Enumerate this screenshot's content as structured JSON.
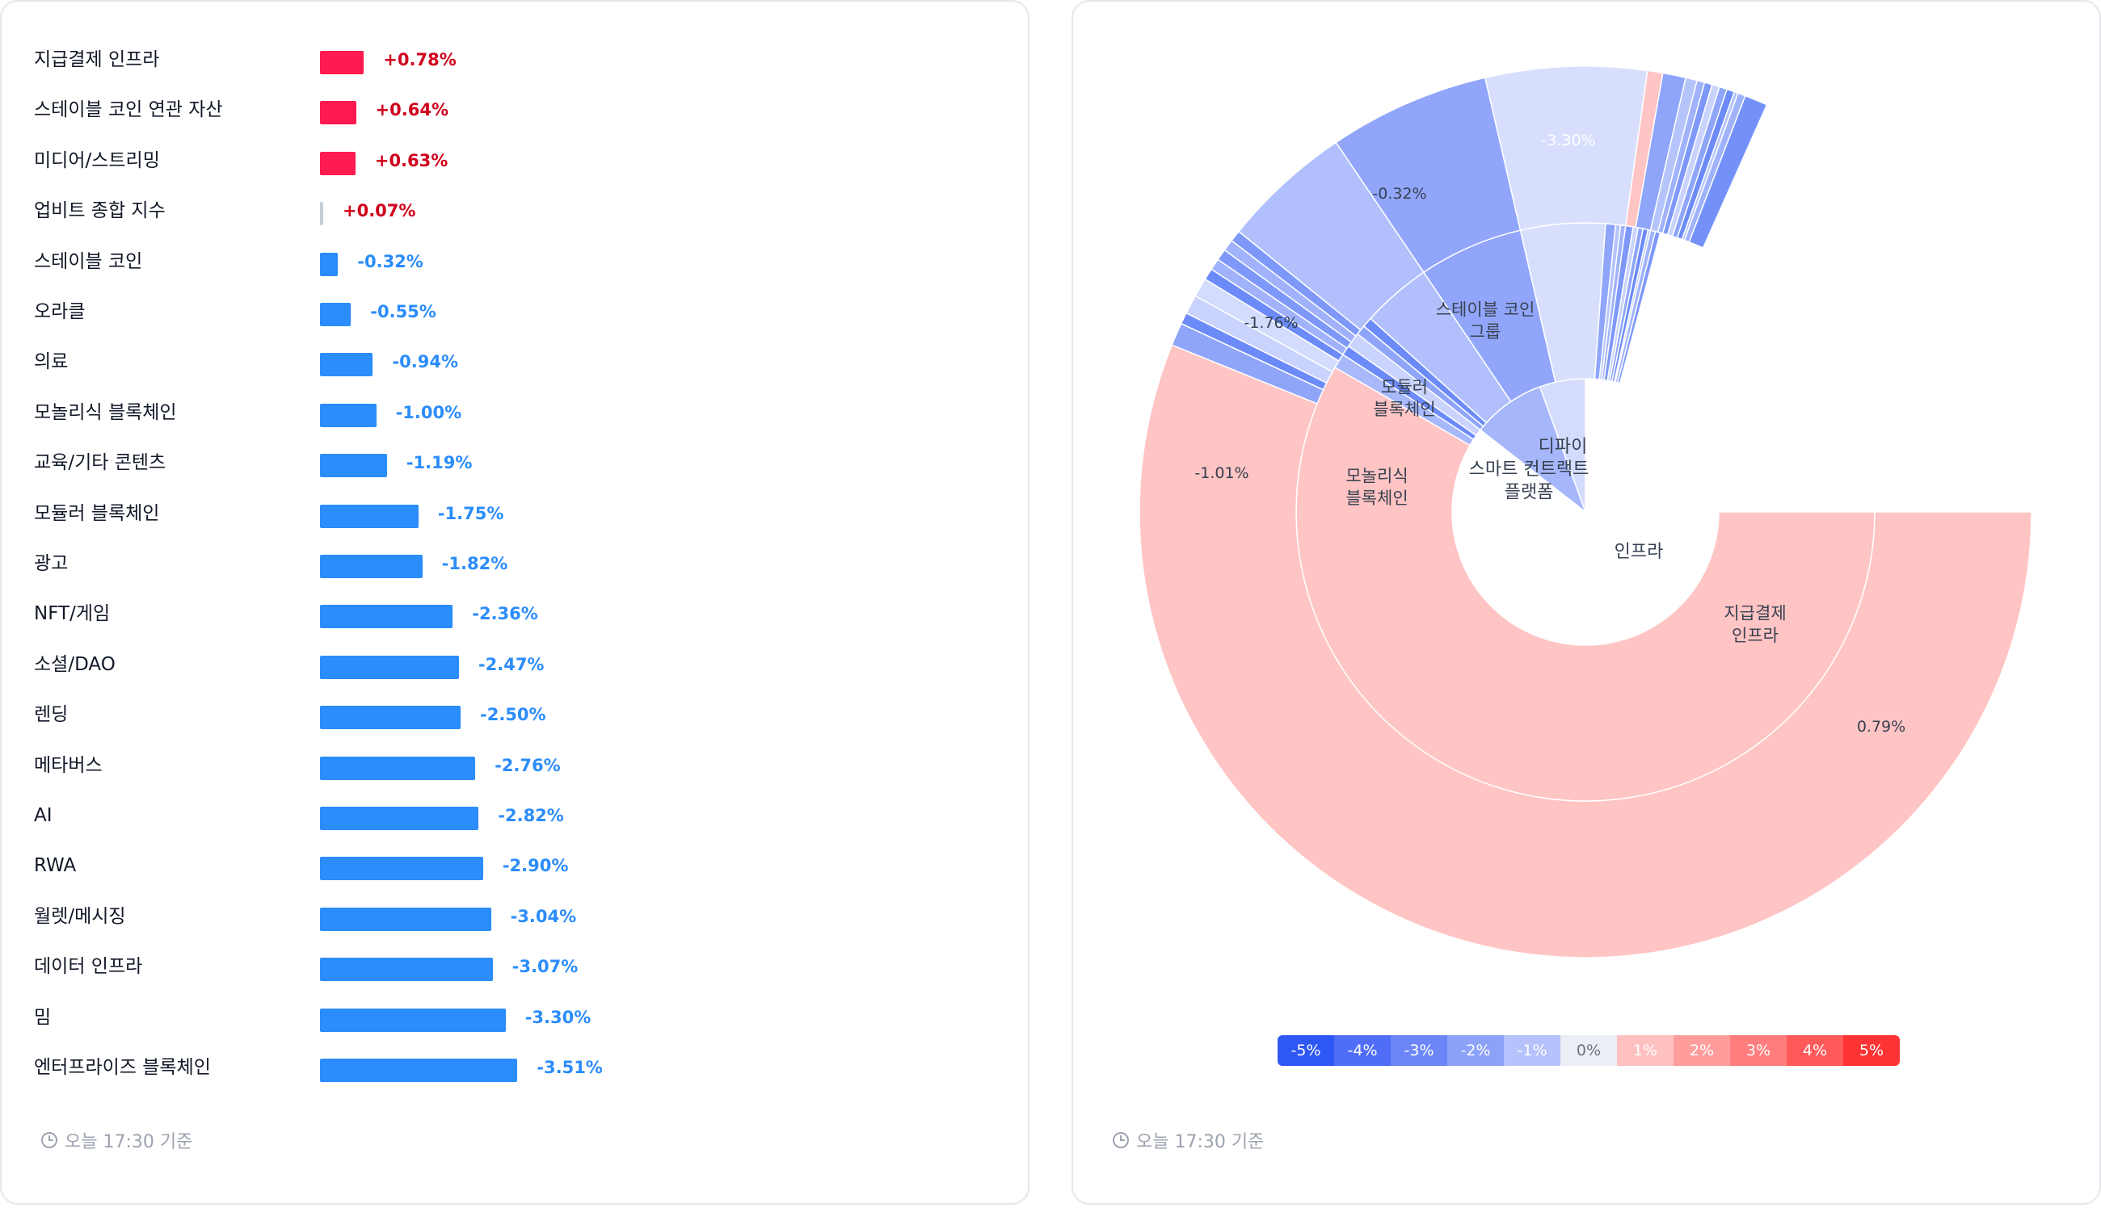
{
  "timestamp_label": "오늘 17:30 기준",
  "colors": {
    "positive_bar": "#ff1a4f",
    "negative_bar": "#2b8cfb",
    "neutral_bar": "#c4cbd8",
    "positive_text": "#d0021b",
    "negative_text": "#2b8cfb"
  },
  "chart_data": [
    {
      "type": "bar",
      "orientation": "horizontal",
      "categories": [
        "지급결제 인프라",
        "스테이블 코인 연관 자산",
        "미디어/스트리밍",
        "업비트 종합 지수",
        "스테이블 코인",
        "오라클",
        "의료",
        "모놀리식 블록체인",
        "교육/기타 콘텐츠",
        "모듈러 블록체인",
        "광고",
        "NFT/게임",
        "소셜/DAO",
        "렌딩",
        "메타버스",
        "AI",
        "RWA",
        "월렛/메시징",
        "데이터 인프라",
        "밈",
        "엔터프라이즈 블록체인"
      ],
      "values": [
        0.78,
        0.64,
        0.63,
        0.07,
        -0.32,
        -0.55,
        -0.94,
        -1.0,
        -1.19,
        -1.75,
        -1.82,
        -2.36,
        -2.47,
        -2.5,
        -2.76,
        -2.82,
        -2.9,
        -3.04,
        -3.07,
        -3.3,
        -3.51
      ],
      "value_labels": [
        "+0.78%",
        "+0.64%",
        "+0.63%",
        "+0.07%",
        "-0.32%",
        "-0.55%",
        "-0.94%",
        "-1.00%",
        "-1.19%",
        "-1.75%",
        "-1.82%",
        "-2.36%",
        "-2.47%",
        "-2.50%",
        "-2.76%",
        "-2.82%",
        "-2.90%",
        "-3.04%",
        "-3.07%",
        "-3.30%",
        "-3.51%"
      ]
    },
    {
      "type": "sunburst",
      "inner": [
        {
          "label": "인프라",
          "start_deg": 142,
          "end_deg": 360,
          "color": "#ffffff"
        },
        {
          "label": "스마트 컨트랙트 플랫폼",
          "start_deg": 110,
          "end_deg": 142,
          "color": "#a6b6fb"
        },
        {
          "label": "디파이",
          "start_deg": 90,
          "end_deg": 110,
          "color": "#d4dcfd"
        }
      ],
      "middle": [
        {
          "label": "지급결제 인프라",
          "start_deg": 150,
          "end_deg": 360,
          "color": "#ffc4c4"
        },
        {
          "label": "",
          "start_deg": 147,
          "end_deg": 150,
          "color": "#a7b8fb"
        },
        {
          "label": "",
          "start_deg": 145,
          "end_deg": 147,
          "color": "#6c8bf8"
        },
        {
          "label": "",
          "start_deg": 142,
          "end_deg": 145,
          "color": "#c9d3fd"
        },
        {
          "label": "",
          "start_deg": 140,
          "end_deg": 142,
          "color": "#8ea5fa"
        },
        {
          "label": "",
          "start_deg": 138,
          "end_deg": 140,
          "color": "#6c8bf8"
        },
        {
          "label": "모놀리식 블록체인",
          "start_deg": 124,
          "end_deg": 138,
          "color": "#b1c0fc"
        },
        {
          "label": "모듈러 블록체인",
          "start_deg": 103,
          "end_deg": 124,
          "color": "#91a6fa"
        },
        {
          "label": "스테이블 코인 그룹",
          "start_deg": 86,
          "end_deg": 103,
          "color": "#d8dffd"
        },
        {
          "label": "",
          "start_deg": 84,
          "end_deg": 86,
          "color": "#8ea5fa"
        },
        {
          "label": "",
          "start_deg": 83,
          "end_deg": 84,
          "color": "#b6c4fc"
        },
        {
          "label": "",
          "start_deg": 82,
          "end_deg": 83,
          "color": "#9fb2fb"
        },
        {
          "label": "",
          "start_deg": 80.5,
          "end_deg": 82,
          "color": "#7e98f9"
        },
        {
          "label": "",
          "start_deg": 79.5,
          "end_deg": 80.5,
          "color": "#c9d3fd"
        },
        {
          "label": "",
          "start_deg": 78.5,
          "end_deg": 79.5,
          "color": "#8ea5fa"
        },
        {
          "label": "",
          "start_deg": 77.5,
          "end_deg": 78.5,
          "color": "#6c8bf8"
        },
        {
          "label": "",
          "start_deg": 77,
          "end_deg": 77.5,
          "color": "#b6c4fc"
        },
        {
          "label": "",
          "start_deg": 76,
          "end_deg": 77,
          "color": "#9fb2fb"
        },
        {
          "label": "",
          "start_deg": 75,
          "end_deg": 76,
          "color": "#7e98f9"
        }
      ],
      "outer": [
        {
          "label": "0.79%",
          "start_deg": 158,
          "end_deg": 360,
          "color": "#ffc4c4"
        },
        {
          "label": "",
          "start_deg": 155,
          "end_deg": 158,
          "color": "#8ea5fa"
        },
        {
          "label": "",
          "start_deg": 153.5,
          "end_deg": 155,
          "color": "#6c8bf8"
        },
        {
          "label": "",
          "start_deg": 151,
          "end_deg": 153.5,
          "color": "#c9d3fd"
        },
        {
          "label": "",
          "start_deg": 148.5,
          "end_deg": 151,
          "color": "#d4dcfd"
        },
        {
          "label": "",
          "start_deg": 147,
          "end_deg": 148.5,
          "color": "#6c8bf8"
        },
        {
          "label": "",
          "start_deg": 145.5,
          "end_deg": 147,
          "color": "#9fb2fb"
        },
        {
          "label": "",
          "start_deg": 144,
          "end_deg": 145.5,
          "color": "#7e98f9"
        },
        {
          "label": "",
          "start_deg": 142.5,
          "end_deg": 144,
          "color": "#9fb2fb"
        },
        {
          "label": "",
          "start_deg": 141,
          "end_deg": 142.5,
          "color": "#7e98f9"
        },
        {
          "label": "-1.01%",
          "start_deg": 124,
          "end_deg": 141,
          "color": "#b1c0fc"
        },
        {
          "label": "-1.76%",
          "start_deg": 103,
          "end_deg": 124,
          "color": "#91a6fa"
        },
        {
          "label": "-0.32%",
          "start_deg": 82,
          "end_deg": 103,
          "color": "#d8dffd"
        },
        {
          "label": "",
          "start_deg": 80,
          "end_deg": 82,
          "color": "#ffc4c4"
        },
        {
          "label": "",
          "start_deg": 77,
          "end_deg": 80,
          "color": "#8ea5fa"
        },
        {
          "label": "",
          "start_deg": 75.5,
          "end_deg": 77,
          "color": "#b6c4fc"
        },
        {
          "label": "",
          "start_deg": 74.5,
          "end_deg": 75.5,
          "color": "#9fb2fb"
        },
        {
          "label": "",
          "start_deg": 73.5,
          "end_deg": 74.5,
          "color": "#7e98f9"
        },
        {
          "label": "",
          "start_deg": 72.5,
          "end_deg": 73.5,
          "color": "#c9d3fd"
        },
        {
          "label": "",
          "start_deg": 71.5,
          "end_deg": 72.5,
          "color": "#8ea5fa"
        },
        {
          "label": "",
          "start_deg": 70.5,
          "end_deg": 71.5,
          "color": "#6c8bf8"
        },
        {
          "label": "",
          "start_deg": 70,
          "end_deg": 70.5,
          "color": "#b6c4fc"
        },
        {
          "label": "",
          "start_deg": 69,
          "end_deg": 70,
          "color": "#9fb2fb"
        },
        {
          "label": "-3.30%",
          "start_deg": 66,
          "end_deg": 69,
          "color": "#7491f9"
        }
      ]
    }
  ],
  "legend": [
    {
      "label": "-5%",
      "bg": "#2f57f5",
      "fg": "#ffffff"
    },
    {
      "label": "-4%",
      "bg": "#4f6df7",
      "fg": "#ffffff"
    },
    {
      "label": "-3%",
      "bg": "#6c86f8",
      "fg": "#ffffff"
    },
    {
      "label": "-2%",
      "bg": "#8ca1fa",
      "fg": "#ffffff"
    },
    {
      "label": "-1%",
      "bg": "#b5c2fc",
      "fg": "#ffffff"
    },
    {
      "label": "0%",
      "bg": "#eceef5",
      "fg": "#6b7280"
    },
    {
      "label": "1%",
      "bg": "#ffc0c0",
      "fg": "#ffffff"
    },
    {
      "label": "2%",
      "bg": "#ff9d9d",
      "fg": "#ffffff"
    },
    {
      "label": "3%",
      "bg": "#ff7d7d",
      "fg": "#ffffff"
    },
    {
      "label": "4%",
      "bg": "#ff5a5a",
      "fg": "#ffffff"
    },
    {
      "label": "5%",
      "bg": "#ff3333",
      "fg": "#ffffff"
    }
  ]
}
